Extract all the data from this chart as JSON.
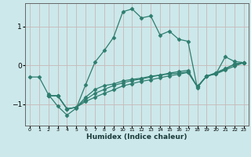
{
  "xlabel": "Humidex (Indice chaleur)",
  "background_color": "#cce8ea",
  "line_color": "#2e7d6e",
  "grid_color": "#c8b8b8",
  "xlim": [
    -0.5,
    23.5
  ],
  "ylim": [
    -1.55,
    1.6
  ],
  "yticks": [
    -1,
    0,
    1
  ],
  "xticks": [
    0,
    1,
    2,
    3,
    4,
    5,
    6,
    7,
    8,
    9,
    10,
    11,
    12,
    13,
    14,
    15,
    16,
    17,
    18,
    19,
    20,
    21,
    22,
    23
  ],
  "line1_x": [
    0,
    1,
    2,
    3,
    4,
    5,
    6,
    7,
    8,
    9,
    10,
    11,
    12,
    13,
    14,
    15,
    16,
    17,
    18,
    19,
    20,
    21,
    22,
    23
  ],
  "line1_y": [
    -0.3,
    -0.3,
    -0.75,
    -1.05,
    -1.28,
    -1.1,
    -0.5,
    0.08,
    0.38,
    0.72,
    1.38,
    1.45,
    1.22,
    1.27,
    0.78,
    0.88,
    0.67,
    0.62,
    -0.58,
    -0.27,
    -0.22,
    0.22,
    0.1,
    0.07
  ],
  "line2_x": [
    2,
    3,
    4,
    5,
    6,
    7,
    8,
    9,
    10,
    11,
    12,
    13,
    14,
    15,
    16,
    17,
    18,
    19,
    20,
    21,
    22,
    23
  ],
  "line2_y": [
    -0.78,
    -0.78,
    -1.12,
    -1.08,
    -0.82,
    -0.62,
    -0.52,
    -0.48,
    -0.4,
    -0.36,
    -0.33,
    -0.28,
    -0.25,
    -0.22,
    -0.2,
    -0.17,
    -0.55,
    -0.28,
    -0.22,
    -0.12,
    -0.02,
    0.07
  ],
  "line3_x": [
    2,
    3,
    4,
    5,
    6,
    7,
    8,
    9,
    10,
    11,
    12,
    13,
    14,
    15,
    16,
    17,
    18,
    19,
    20,
    21,
    22,
    23
  ],
  "line3_y": [
    -0.78,
    -0.78,
    -1.12,
    -1.08,
    -0.88,
    -0.72,
    -0.62,
    -0.52,
    -0.45,
    -0.39,
    -0.35,
    -0.3,
    -0.25,
    -0.2,
    -0.16,
    -0.13,
    -0.55,
    -0.28,
    -0.19,
    -0.08,
    0.02,
    0.07
  ],
  "line4_x": [
    2,
    3,
    4,
    5,
    6,
    7,
    8,
    9,
    10,
    11,
    12,
    13,
    14,
    15,
    16,
    17,
    18,
    19,
    20,
    21,
    22,
    23
  ],
  "line4_y": [
    -0.78,
    -0.78,
    -1.12,
    -1.08,
    -0.93,
    -0.82,
    -0.72,
    -0.63,
    -0.53,
    -0.47,
    -0.41,
    -0.37,
    -0.32,
    -0.27,
    -0.23,
    -0.18,
    -0.55,
    -0.28,
    -0.2,
    -0.1,
    0.04,
    0.07
  ]
}
